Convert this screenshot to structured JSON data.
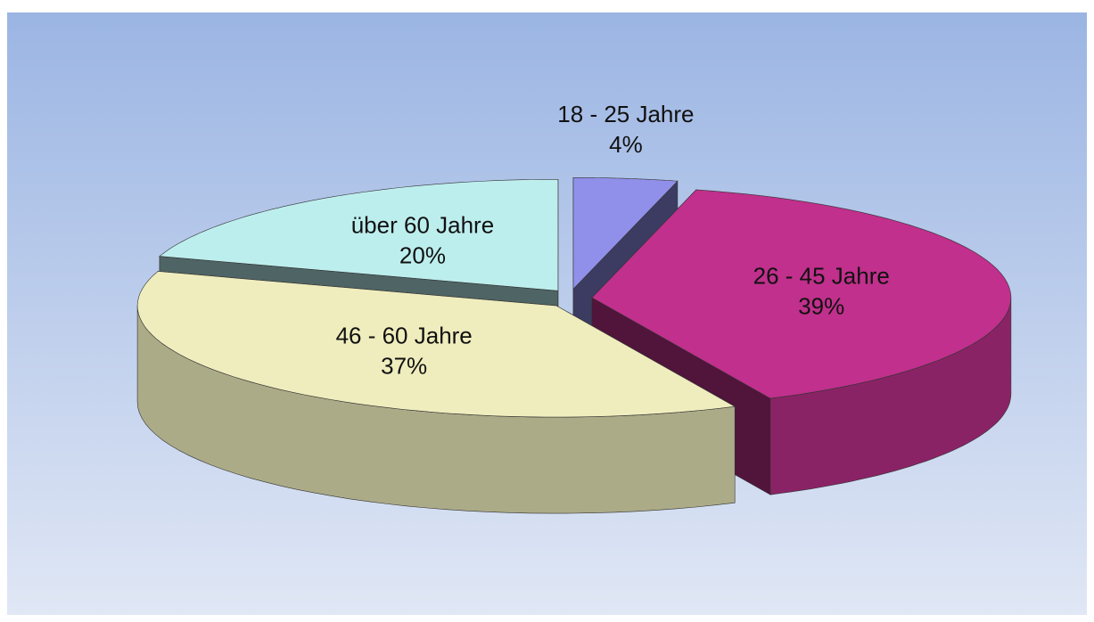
{
  "chart_data": {
    "type": "pie",
    "categories": [
      "18 - 25 Jahre",
      "26 - 45 Jahre",
      "46 - 60 Jahre",
      "über 60 Jahre"
    ],
    "values": [
      4,
      39,
      37,
      20
    ],
    "value_labels": [
      "4%",
      "39%",
      "37%",
      "20%"
    ],
    "colors": [
      "#9090ea",
      "#c0308c",
      "#efedbd",
      "#bdeeee"
    ],
    "exploded": true,
    "three_d": true
  }
}
